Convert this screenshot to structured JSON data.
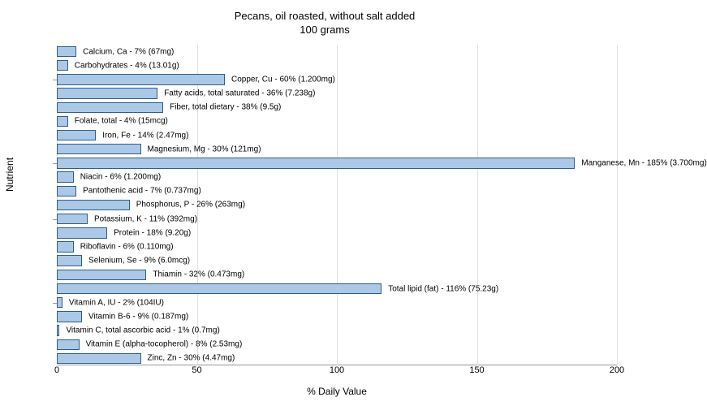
{
  "chart": {
    "type": "bar-horizontal",
    "title_line1": "Pecans, oil roasted, without salt added",
    "title_line2": "100 grams",
    "title_fontsize": 13,
    "x_label": "% Daily Value",
    "y_label": "Nutrient",
    "label_fontsize": 12,
    "bar_label_fontsize": 10,
    "tick_fontsize": 11,
    "xlim": [
      0,
      200
    ],
    "x_ticks": [
      0,
      50,
      100,
      150,
      200
    ],
    "bar_fill": "#abc8e6",
    "bar_border": "#2f5d8a",
    "grid_color": "#e0e0e0",
    "background_color": "#ffffff",
    "nutrients": [
      {
        "label": "Calcium, Ca - 7% (67mg)",
        "value": 7
      },
      {
        "label": "Carbohydrates - 4% (13.01g)",
        "value": 4
      },
      {
        "label": "Copper, Cu - 60% (1.200mg)",
        "value": 60
      },
      {
        "label": "Fatty acids, total saturated - 36% (7.238g)",
        "value": 36
      },
      {
        "label": "Fiber, total dietary - 38% (9.5g)",
        "value": 38
      },
      {
        "label": "Folate, total - 4% (15mcg)",
        "value": 4
      },
      {
        "label": "Iron, Fe - 14% (2.47mg)",
        "value": 14
      },
      {
        "label": "Magnesium, Mg - 30% (121mg)",
        "value": 30
      },
      {
        "label": "Manganese, Mn - 185% (3.700mg)",
        "value": 185
      },
      {
        "label": "Niacin - 6% (1.200mg)",
        "value": 6
      },
      {
        "label": "Pantothenic acid - 7% (0.737mg)",
        "value": 7
      },
      {
        "label": "Phosphorus, P - 26% (263mg)",
        "value": 26
      },
      {
        "label": "Potassium, K - 11% (392mg)",
        "value": 11
      },
      {
        "label": "Protein - 18% (9.20g)",
        "value": 18
      },
      {
        "label": "Riboflavin - 6% (0.110mg)",
        "value": 6
      },
      {
        "label": "Selenium, Se - 9% (6.0mcg)",
        "value": 9
      },
      {
        "label": "Thiamin - 32% (0.473mg)",
        "value": 32
      },
      {
        "label": "Total lipid (fat) - 116% (75.23g)",
        "value": 116
      },
      {
        "label": "Vitamin A, IU - 2% (104IU)",
        "value": 2
      },
      {
        "label": "Vitamin B-6 - 9% (0.187mg)",
        "value": 9
      },
      {
        "label": "Vitamin C, total ascorbic acid - 1% (0.7mg)",
        "value": 1
      },
      {
        "label": "Vitamin E (alpha-tocopherol) - 8% (2.53mg)",
        "value": 8
      },
      {
        "label": "Zinc, Zn - 30% (4.47mg)",
        "value": 30
      }
    ],
    "y_group_ticks": [
      2,
      8,
      12,
      18
    ]
  }
}
